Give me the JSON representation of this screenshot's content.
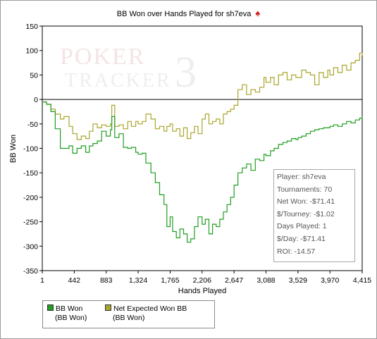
{
  "chart_data": {
    "type": "line",
    "title": "BB Won over Hands Played for sh7eva",
    "title_icon": "spade-icon",
    "xlabel": "Hands Played",
    "ylabel": "BB Won",
    "xlim": [
      1,
      4415
    ],
    "ylim": [
      -350,
      150
    ],
    "x_ticks": [
      1,
      442,
      883,
      1324,
      1765,
      2206,
      2647,
      3088,
      3529,
      3970,
      4415
    ],
    "x_tick_labels": [
      "1",
      "442",
      "883",
      "1,324",
      "1,765",
      "2,206",
      "2,647",
      "3,088",
      "3,529",
      "3,970",
      "4,415"
    ],
    "y_ticks": [
      -350,
      -300,
      -250,
      -200,
      -150,
      -100,
      -50,
      0,
      50,
      100,
      150
    ],
    "y_tick_labels": [
      "-350",
      "-300",
      "-250",
      "-200",
      "-150",
      "-100",
      "-50",
      "0",
      "50",
      "100",
      "150"
    ],
    "grid": false,
    "legend_position": "bottom-left",
    "series": [
      {
        "name": "BB Won\n(BB Won)",
        "legend_line1": "BB Won",
        "legend_line2": "(BB Won)",
        "color": "#1f9e1f",
        "x": [
          1,
          60,
          120,
          180,
          250,
          300,
          370,
          420,
          480,
          540,
          600,
          650,
          700,
          760,
          820,
          883,
          940,
          960,
          1000,
          1060,
          1120,
          1180,
          1230,
          1290,
          1324,
          1380,
          1430,
          1500,
          1560,
          1620,
          1680,
          1720,
          1765,
          1800,
          1850,
          1900,
          1950,
          2000,
          2050,
          2100,
          2150,
          2206,
          2250,
          2300,
          2350,
          2400,
          2450,
          2500,
          2550,
          2600,
          2647,
          2700,
          2760,
          2820,
          2880,
          2940,
          3000,
          3060,
          3088,
          3150,
          3200,
          3260,
          3320,
          3380,
          3440,
          3500,
          3529,
          3580,
          3640,
          3700,
          3760,
          3820,
          3880,
          3940,
          3970,
          4020,
          4080,
          4140,
          4200,
          4260,
          4320,
          4380,
          4415
        ],
        "y": [
          -5,
          -10,
          -25,
          -60,
          -100,
          -100,
          -95,
          -110,
          -100,
          -95,
          -108,
          -95,
          -90,
          -85,
          -65,
          -75,
          -62,
          -35,
          -78,
          -70,
          -98,
          -100,
          -98,
          -108,
          -112,
          -110,
          -130,
          -150,
          -170,
          -195,
          -215,
          -260,
          -240,
          -270,
          -283,
          -265,
          -275,
          -292,
          -285,
          -260,
          -240,
          -255,
          -245,
          -275,
          -255,
          -260,
          -245,
          -230,
          -215,
          -200,
          -175,
          -150,
          -140,
          -132,
          -145,
          -122,
          -125,
          -112,
          -115,
          -105,
          -100,
          -92,
          -88,
          -85,
          -80,
          -82,
          -78,
          -75,
          -70,
          -65,
          -62,
          -60,
          -58,
          -58,
          -55,
          -52,
          -55,
          -50,
          -45,
          -48,
          -42,
          -38,
          -35
        ]
      },
      {
        "name": "Net Expected Won BB\n(BB Won)",
        "legend_line1": "Net Expected Won BB",
        "legend_line2": "(BB Won)",
        "color": "#aaa52a",
        "x": [
          1,
          60,
          120,
          180,
          250,
          300,
          370,
          420,
          480,
          540,
          600,
          650,
          700,
          760,
          820,
          883,
          940,
          960,
          1000,
          1060,
          1120,
          1180,
          1230,
          1290,
          1324,
          1380,
          1430,
          1500,
          1560,
          1620,
          1680,
          1720,
          1765,
          1800,
          1850,
          1900,
          1950,
          2000,
          2050,
          2100,
          2150,
          2206,
          2250,
          2300,
          2350,
          2400,
          2450,
          2500,
          2550,
          2600,
          2647,
          2700,
          2760,
          2820,
          2880,
          2940,
          3000,
          3060,
          3088,
          3150,
          3200,
          3260,
          3320,
          3380,
          3440,
          3500,
          3529,
          3580,
          3640,
          3700,
          3760,
          3820,
          3880,
          3940,
          3970,
          4020,
          4080,
          4140,
          4200,
          4260,
          4320,
          4380,
          4415
        ],
        "y": [
          -5,
          -10,
          -20,
          -30,
          -40,
          -35,
          -55,
          -70,
          -82,
          -75,
          -80,
          -65,
          -50,
          -58,
          -52,
          -55,
          -50,
          -12,
          -55,
          -52,
          -60,
          -45,
          -55,
          -45,
          -50,
          -45,
          -30,
          -40,
          -60,
          -55,
          -65,
          -55,
          -50,
          -65,
          -60,
          -75,
          -58,
          -80,
          -68,
          -55,
          -70,
          -40,
          -30,
          -50,
          -45,
          -40,
          -50,
          -30,
          -25,
          -20,
          -12,
          20,
          30,
          10,
          20,
          15,
          25,
          45,
          35,
          45,
          30,
          50,
          55,
          40,
          50,
          45,
          45,
          60,
          55,
          50,
          30,
          55,
          45,
          60,
          50,
          65,
          55,
          70,
          60,
          75,
          80,
          95,
          90
        ]
      }
    ],
    "annotation_box": [
      "Player: sh7eva",
      "Tournaments: 70",
      "Net Won: -$71.41",
      "$/Tourney: -$1.02",
      "Days Played: 1",
      "$/Day: -$71.41",
      "ROI: -14.57"
    ],
    "watermark": {
      "line1": "POKER",
      "line2": "TRACKER",
      "digit": "3"
    }
  }
}
